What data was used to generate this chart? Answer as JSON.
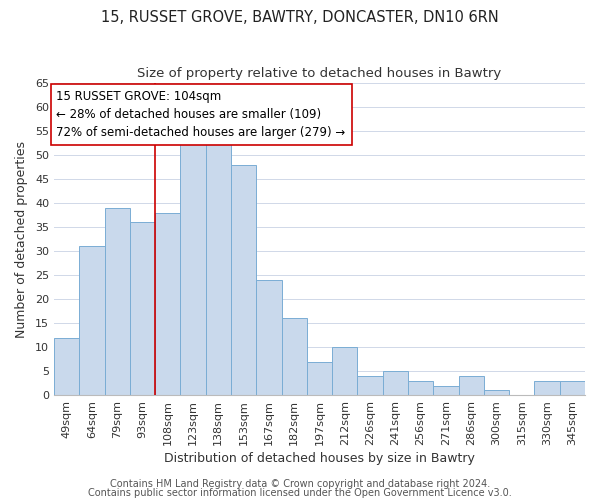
{
  "title": "15, RUSSET GROVE, BAWTRY, DONCASTER, DN10 6RN",
  "subtitle": "Size of property relative to detached houses in Bawtry",
  "xlabel": "Distribution of detached houses by size in Bawtry",
  "ylabel": "Number of detached properties",
  "bar_color": "#c9d9ec",
  "bar_edge_color": "#7aadd4",
  "background_color": "#ffffff",
  "grid_color": "#d0d8e8",
  "categories": [
    "49sqm",
    "64sqm",
    "79sqm",
    "93sqm",
    "108sqm",
    "123sqm",
    "138sqm",
    "153sqm",
    "167sqm",
    "182sqm",
    "197sqm",
    "212sqm",
    "226sqm",
    "241sqm",
    "256sqm",
    "271sqm",
    "286sqm",
    "300sqm",
    "315sqm",
    "330sqm",
    "345sqm"
  ],
  "values": [
    12,
    31,
    39,
    36,
    38,
    53,
    54,
    48,
    24,
    16,
    7,
    10,
    4,
    5,
    3,
    2,
    4,
    1,
    0,
    3,
    3
  ],
  "ylim": [
    0,
    65
  ],
  "yticks": [
    0,
    5,
    10,
    15,
    20,
    25,
    30,
    35,
    40,
    45,
    50,
    55,
    60,
    65
  ],
  "marker_bin_index": 4,
  "marker_label": "15 RUSSET GROVE: 104sqm",
  "annotation_line1": "← 28% of detached houses are smaller (109)",
  "annotation_line2": "72% of semi-detached houses are larger (279) →",
  "footer1": "Contains HM Land Registry data © Crown copyright and database right 2024.",
  "footer2": "Contains public sector information licensed under the Open Government Licence v3.0.",
  "marker_color": "#cc0000",
  "annotation_box_edge_color": "#cc0000",
  "title_fontsize": 10.5,
  "subtitle_fontsize": 9.5,
  "axis_label_fontsize": 9,
  "tick_fontsize": 8,
  "annotation_fontsize": 8.5,
  "footer_fontsize": 7
}
